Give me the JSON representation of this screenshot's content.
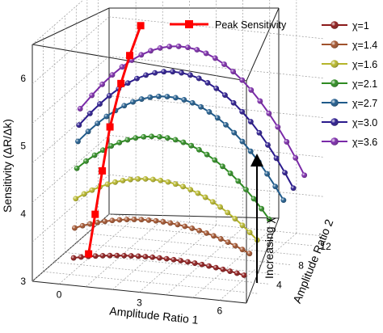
{
  "chart_data": {
    "type": "line",
    "projection": "3d",
    "xlabel": "Amplitude Ratio 1",
    "ylabel": "Amplitude Ratio 2",
    "zlabel": "Sensitivity (ΔR/Δk)",
    "xlim": [
      -1,
      7
    ],
    "ylim": [
      0,
      14
    ],
    "zlim": [
      3,
      6.5
    ],
    "x_ticks": [
      "0",
      "3",
      "6"
    ],
    "y_ticks": [
      "4",
      "8",
      "12"
    ],
    "z_ticks": [
      "3",
      "4",
      "5",
      "6"
    ],
    "grid": true,
    "legend_position": "top-right",
    "annotation": "Increasing χ",
    "peak_series": {
      "name": "Peak Sensitivity",
      "color": "#ff0000",
      "points": [
        {
          "x": 1.0,
          "y": 0.5,
          "z": 3.45
        },
        {
          "x": 1.0,
          "y": 1.7,
          "z": 3.95
        },
        {
          "x": 1.0,
          "y": 3.0,
          "z": 4.5
        },
        {
          "x": 1.0,
          "y": 4.4,
          "z": 5.05
        },
        {
          "x": 1.0,
          "y": 6.4,
          "z": 5.55
        },
        {
          "x": 1.0,
          "y": 8.0,
          "z": 5.85
        },
        {
          "x": 1.0,
          "y": 10.0,
          "z": 6.15
        }
      ]
    },
    "series": [
      {
        "name": "χ=1",
        "chi": 1.0,
        "color": "#8b1a1a",
        "z0": 3.25,
        "zpeak": 3.45,
        "x_range": [
          0.5,
          6.5
        ],
        "y_range": [
          0.2,
          2.0
        ]
      },
      {
        "name": "χ=1.4",
        "chi": 1.4,
        "color": "#a0522d",
        "z0": 3.5,
        "zpeak": 3.95,
        "x_range": [
          0.5,
          6.5
        ],
        "y_range": [
          0.4,
          3.0
        ]
      },
      {
        "name": "χ=1.6",
        "chi": 1.6,
        "color": "#b5b52a",
        "z0": 3.6,
        "zpeak": 4.5,
        "x_range": [
          0.5,
          6.5
        ],
        "y_range": [
          0.6,
          4.4
        ]
      },
      {
        "name": "χ=2.1",
        "chi": 2.1,
        "color": "#2e8b22",
        "z0": 3.75,
        "zpeak": 5.05,
        "x_range": [
          0.5,
          6.5
        ],
        "y_range": [
          0.8,
          6.6
        ]
      },
      {
        "name": "χ=2.7",
        "chi": 2.7,
        "color": "#1f5a8a",
        "z0": 3.85,
        "zpeak": 5.55,
        "x_range": [
          0.5,
          6.5
        ],
        "y_range": [
          1.0,
          9.2
        ]
      },
      {
        "name": "χ=3.0",
        "chi": 3.0,
        "color": "#2a1a8c",
        "z0": 3.9,
        "zpeak": 5.85,
        "x_range": [
          0.5,
          6.5
        ],
        "y_range": [
          1.2,
          11.0
        ]
      },
      {
        "name": "χ=3.6",
        "chi": 3.6,
        "color": "#7a2aa8",
        "z0": 3.95,
        "zpeak": 6.15,
        "x_range": [
          0.5,
          6.5
        ],
        "y_range": [
          1.4,
          13.0
        ]
      }
    ]
  }
}
